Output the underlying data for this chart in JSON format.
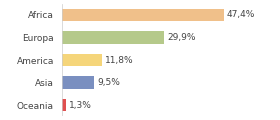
{
  "categories": [
    "Africa",
    "Europa",
    "America",
    "Asia",
    "Oceania"
  ],
  "values": [
    47.4,
    29.9,
    11.8,
    9.5,
    1.3
  ],
  "bar_colors": [
    "#f0c08a",
    "#b5c98a",
    "#f5d57a",
    "#7a8fc0",
    "#e05050"
  ],
  "decimal_sep": ",",
  "xlim": [
    0,
    62
  ],
  "background_color": "#ffffff",
  "text_color": "#444444",
  "bar_height": 0.55,
  "label_fontsize": 6.5,
  "category_fontsize": 6.5
}
